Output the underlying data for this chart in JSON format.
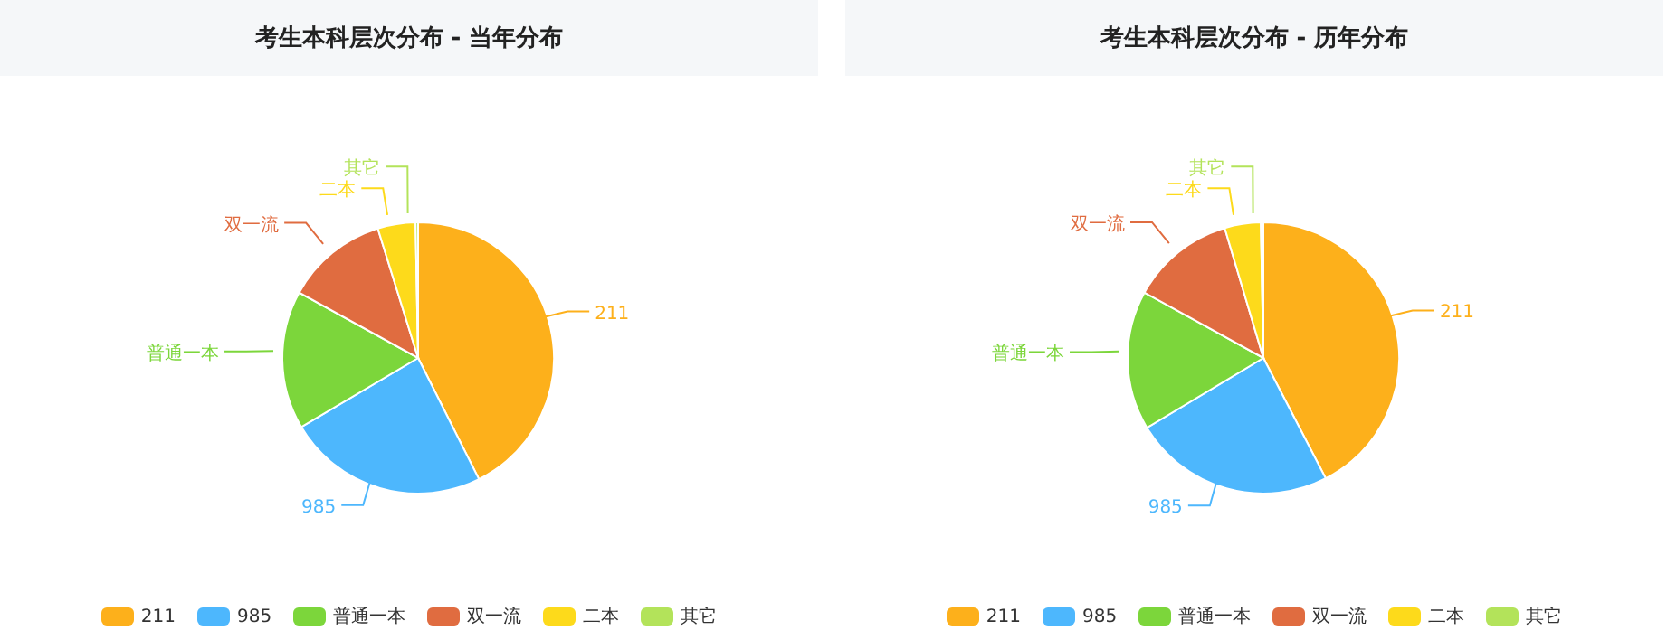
{
  "chart_data": [
    {
      "type": "pie",
      "title": "考生本科层次分布 - 当年分布",
      "categories": [
        "211",
        "985",
        "普通一本",
        "双一流",
        "二本",
        "其它"
      ],
      "values": [
        42.6,
        23.9,
        16.5,
        12.2,
        4.5,
        0.3
      ],
      "colors": [
        "#fdb01b",
        "#4db7fd",
        "#7cd63b",
        "#e06c40",
        "#fdda1b",
        "#b3e35a"
      ],
      "legend": "bottom"
    },
    {
      "type": "pie",
      "title": "考生本科层次分布 - 历年分布",
      "categories": [
        "211",
        "985",
        "普通一本",
        "双一流",
        "二本",
        "其它"
      ],
      "values": [
        42.4,
        24.0,
        16.6,
        12.4,
        4.3,
        0.3
      ],
      "colors": [
        "#fdb01b",
        "#4db7fd",
        "#7cd63b",
        "#e06c40",
        "#fdda1b",
        "#b3e35a"
      ],
      "legend": "bottom"
    }
  ]
}
